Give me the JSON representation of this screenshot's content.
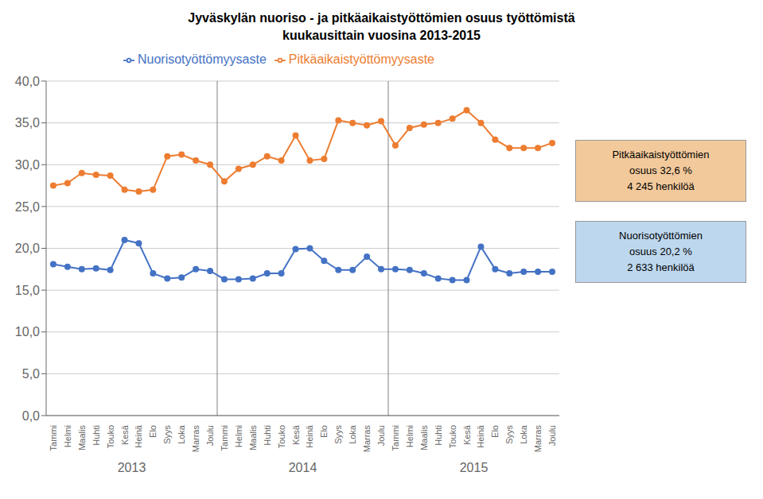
{
  "chart_data": {
    "type": "line",
    "title": "Jyväskylän nuoriso - ja pitkäaikaistyöttömien osuus työttömistä",
    "subtitle": "kuukausittain vuosina 2013-2015",
    "categories": [
      "Tammi",
      "Helmi",
      "Maalis",
      "Huhti",
      "Touko",
      "Kesä",
      "Heinä",
      "Elo",
      "Syys",
      "Loka",
      "Marras",
      "Joulu",
      "Tammi",
      "Helmi",
      "Maalis",
      "Huhti",
      "Touko",
      "Kesä",
      "Heinä",
      "Elo",
      "Syys",
      "Loka",
      "Marras",
      "Joulu",
      "Tammi",
      "Helmi",
      "Maalis",
      "Huhti",
      "Touko",
      "Kesä",
      "Heinä",
      "Elo",
      "Syys",
      "Loka",
      "Marras",
      "Joulu"
    ],
    "x_groups": [
      {
        "label": "2013",
        "size": 12
      },
      {
        "label": "2014",
        "size": 12
      },
      {
        "label": "2015",
        "size": 12
      }
    ],
    "series": [
      {
        "name": "Nuorisotyöttömyysaste",
        "color": "#4472C4",
        "marker": "circle",
        "values": [
          18.1,
          17.8,
          17.5,
          17.6,
          17.4,
          21.0,
          20.6,
          17.0,
          16.4,
          16.5,
          17.5,
          17.3,
          16.3,
          16.3,
          16.4,
          17.0,
          17.0,
          19.9,
          20.0,
          18.5,
          17.4,
          17.4,
          19.0,
          17.5,
          17.5,
          17.4,
          17.0,
          16.4,
          16.2,
          16.2,
          20.2,
          17.5,
          17.0,
          17.2,
          17.2,
          17.2
        ]
      },
      {
        "name": "Pitkäaikaistyöttömyysaste",
        "color": "#ED7D31",
        "marker": "circle",
        "values": [
          27.5,
          27.8,
          29.0,
          28.8,
          28.7,
          27.0,
          26.8,
          27.0,
          31.0,
          31.2,
          30.5,
          30.0,
          28.0,
          29.5,
          30.0,
          31.0,
          30.5,
          33.5,
          30.5,
          30.7,
          35.3,
          35.0,
          34.7,
          35.2,
          32.3,
          34.4,
          34.8,
          35.0,
          35.5,
          36.5,
          35.0,
          33.0,
          32.0,
          32.0,
          32.0,
          32.6
        ]
      }
    ],
    "ylim": [
      0,
      40
    ],
    "yticks": [
      {
        "value": 0,
        "label": "0,0"
      },
      {
        "value": 5,
        "label": "5,0"
      },
      {
        "value": 10,
        "label": "10,0"
      },
      {
        "value": 15,
        "label": "15,0"
      },
      {
        "value": 20,
        "label": "20,0"
      },
      {
        "value": 25,
        "label": "25,0"
      },
      {
        "value": 30,
        "label": "30,0"
      },
      {
        "value": 35,
        "label": "35,0"
      },
      {
        "value": 40,
        "label": "40,0"
      }
    ],
    "grid": true,
    "legend": "top",
    "annotations": [
      {
        "text": "Pitkäaikaistyöttömien\nosuus 32,6 %\n4 245 henkilöä",
        "color": "#F2C99B"
      },
      {
        "text": "Nuorisotyöttömien\nosuus 20,2 %\n2 633 henkilöä",
        "color": "#BDD7EE"
      }
    ]
  }
}
